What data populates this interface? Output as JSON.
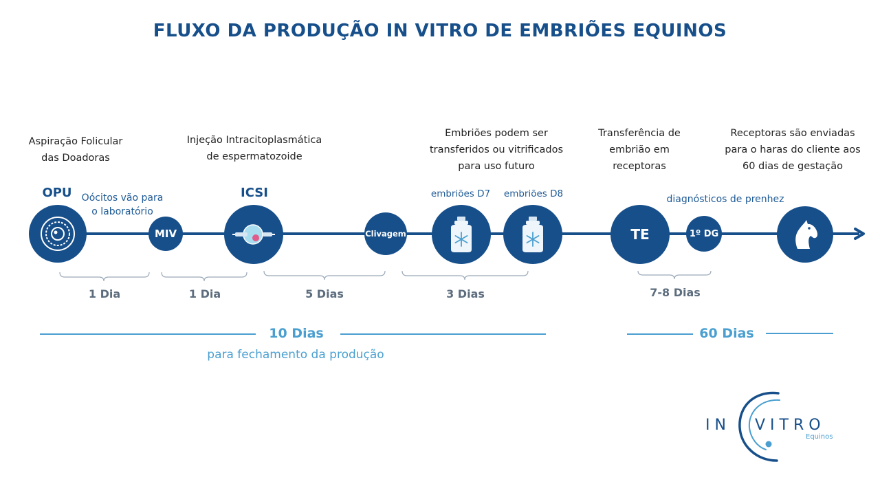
{
  "title": "FLUXO DA PRODUÇÃO IN VITRO DE EMBRIÕES EQUINOS",
  "descriptions": {
    "opu": [
      "Aspiração Folicular",
      "das Doadoras"
    ],
    "icsi": [
      "Injeção Intracitoplasmática",
      "de espermatozoide"
    ],
    "embryos": [
      "Embriões podem ser",
      "transferidos ou vitrificados",
      "para uso futuro"
    ],
    "te": [
      "Transferência de",
      "embrião em",
      "receptoras"
    ],
    "recipients": [
      "Receptoras são enviadas",
      "para o haras do cliente aos",
      "60 dias de gestação"
    ]
  },
  "labels": {
    "opu": "OPU",
    "icsi": "ICSI",
    "oocytes_note": [
      "Oócitos vão para",
      "o laboratório"
    ],
    "d7": "embriões D7",
    "d8": "embriões D8",
    "pregnancy_diag": "diagnósticos de prenhez"
  },
  "nodes": {
    "miv": "MIV",
    "clivagem": "Clivagem",
    "te": "TE",
    "dg": "1º DG"
  },
  "durations": {
    "d1": "1 Dia",
    "d2": "1 Dia",
    "d3": "5 Dias",
    "d4": "3 Dias",
    "d5": "7-8 Dias"
  },
  "totals": {
    "ten_days": "10 Dias",
    "production_note": "para fechamento da produção",
    "sixty_days": "60 Dias"
  },
  "logo": {
    "left": "IN",
    "right": "VITRO",
    "sub": "Equinos"
  },
  "colors": {
    "primary": "#174f8a",
    "accent": "#4a9fd0",
    "duration": "#5d6d7e"
  }
}
